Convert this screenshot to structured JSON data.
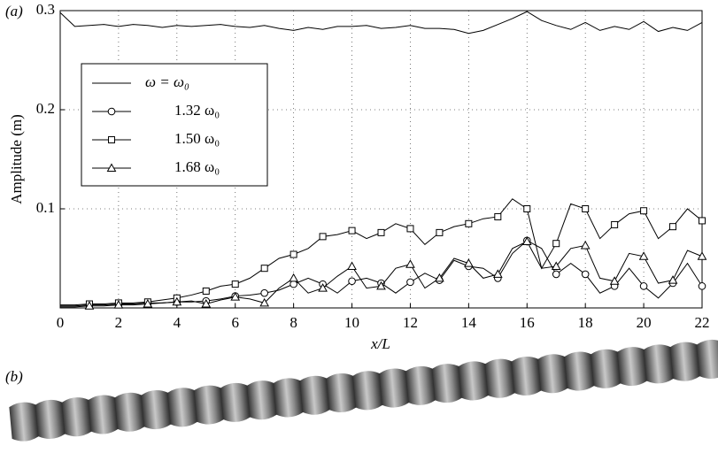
{
  "panel_labels": [
    "(a)",
    "(b)"
  ],
  "chart_data": {
    "type": "line",
    "ylabel": "Amplitude (m)",
    "xlabel": "x/L",
    "xlim": [
      0,
      22
    ],
    "xticks": [
      0,
      2,
      4,
      6,
      8,
      10,
      12,
      14,
      16,
      18,
      20,
      22
    ],
    "ylim": [
      0,
      0.3
    ],
    "yticks": [
      0.1,
      0.2,
      0.3
    ],
    "grid": true,
    "legend": "upper left",
    "x": [
      0,
      0.5,
      1,
      1.5,
      2,
      2.5,
      3,
      3.5,
      4,
      4.5,
      5,
      5.5,
      6,
      6.5,
      7,
      7.5,
      8,
      8.5,
      9,
      9.5,
      10,
      10.5,
      11,
      11.5,
      12,
      12.5,
      13,
      13.5,
      14,
      14.5,
      15,
      15.5,
      16,
      16.5,
      17,
      17.5,
      18,
      18.5,
      19,
      19.5,
      20,
      20.5,
      21,
      21.5,
      22
    ],
    "series": [
      {
        "name": "ω = ω₀",
        "color": "#000000",
        "marker": null,
        "values": [
          0.298,
          0.284,
          0.285,
          0.286,
          0.284,
          0.286,
          0.285,
          0.283,
          0.285,
          0.284,
          0.285,
          0.286,
          0.284,
          0.283,
          0.285,
          0.282,
          0.28,
          0.283,
          0.281,
          0.284,
          0.284,
          0.285,
          0.282,
          0.283,
          0.285,
          0.282,
          0.282,
          0.281,
          0.277,
          0.28,
          0.286,
          0.292,
          0.299,
          0.29,
          0.285,
          0.281,
          0.288,
          0.28,
          0.284,
          0.281,
          0.289,
          0.279,
          0.283,
          0.28,
          0.288
        ]
      },
      {
        "name": "1.32 ω₀",
        "color": "#000000",
        "marker": "circle",
        "values": [
          0.002,
          0.002,
          0.003,
          0.003,
          0.004,
          0.004,
          0.005,
          0.005,
          0.006,
          0.006,
          0.007,
          0.009,
          0.012,
          0.013,
          0.015,
          0.018,
          0.024,
          0.03,
          0.024,
          0.015,
          0.027,
          0.03,
          0.025,
          0.015,
          0.026,
          0.035,
          0.028,
          0.048,
          0.042,
          0.04,
          0.03,
          0.055,
          0.068,
          0.06,
          0.034,
          0.045,
          0.034,
          0.015,
          0.022,
          0.04,
          0.022,
          0.01,
          0.025,
          0.045,
          0.022
        ]
      },
      {
        "name": "1.50 ω₀",
        "color": "#000000",
        "marker": "square",
        "values": [
          0.003,
          0.003,
          0.004,
          0.004,
          0.005,
          0.005,
          0.006,
          0.008,
          0.01,
          0.013,
          0.017,
          0.022,
          0.024,
          0.03,
          0.04,
          0.05,
          0.054,
          0.06,
          0.072,
          0.074,
          0.078,
          0.07,
          0.076,
          0.085,
          0.08,
          0.064,
          0.076,
          0.082,
          0.085,
          0.09,
          0.092,
          0.11,
          0.1,
          0.04,
          0.065,
          0.105,
          0.1,
          0.07,
          0.084,
          0.095,
          0.098,
          0.07,
          0.082,
          0.1,
          0.088
        ]
      },
      {
        "name": "1.68 ω₀",
        "color": "#000000",
        "marker": "triangle",
        "values": [
          0.001,
          0.001,
          0.002,
          0.002,
          0.003,
          0.003,
          0.004,
          0.005,
          0.006,
          0.007,
          0.004,
          0.008,
          0.011,
          0.009,
          0.005,
          0.02,
          0.03,
          0.015,
          0.02,
          0.032,
          0.042,
          0.02,
          0.022,
          0.04,
          0.044,
          0.02,
          0.03,
          0.05,
          0.045,
          0.03,
          0.034,
          0.06,
          0.067,
          0.04,
          0.042,
          0.06,
          0.063,
          0.03,
          0.027,
          0.055,
          0.052,
          0.025,
          0.028,
          0.058,
          0.052
        ]
      }
    ]
  }
}
